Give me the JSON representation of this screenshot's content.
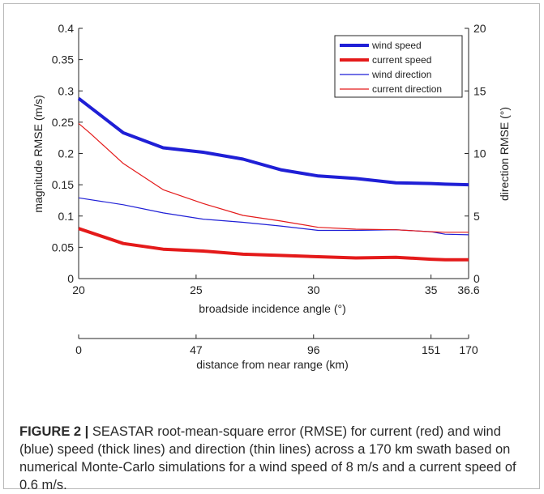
{
  "chart_data": {
    "type": "line",
    "xlabel": "broadside incidence angle (°)",
    "xlim": [
      20,
      36.6
    ],
    "xticks": [
      "20",
      "25",
      "30",
      "35",
      "36.6"
    ],
    "ylabel": "magnitude RMSE (m/s)",
    "ylim": [
      0,
      0.4
    ],
    "yticks": [
      "0",
      "0.05",
      "0.1",
      "0.15",
      "0.2",
      "0.25",
      "0.3",
      "0.35",
      "0.4"
    ],
    "y2label": "direction RMSE (°)",
    "y2lim": [
      0,
      20
    ],
    "y2ticks": [
      "0",
      "5",
      "10",
      "15",
      "20"
    ],
    "grid": false,
    "legend_position": "top-right",
    "secondary_x": {
      "label": "distance from near range (km)",
      "ticks": [
        {
          "angle": 20,
          "label": "0"
        },
        {
          "angle": 25,
          "label": "47"
        },
        {
          "angle": 30,
          "label": "96"
        },
        {
          "angle": 35,
          "label": "151"
        },
        {
          "angle": 36.6,
          "label": "170"
        }
      ]
    },
    "series": [
      {
        "name": "wind speed",
        "axis": "left",
        "color": "#1f1fd6",
        "width": "thick",
        "x": [
          20,
          21.9,
          23.6,
          25.3,
          27.0,
          28.6,
          30.2,
          31.8,
          33.5,
          35.0,
          35.6,
          36.6
        ],
        "y": [
          0.288,
          0.233,
          0.209,
          0.202,
          0.191,
          0.174,
          0.164,
          0.16,
          0.153,
          0.152,
          0.151,
          0.15
        ]
      },
      {
        "name": "current speed",
        "axis": "left",
        "color": "#e41a1a",
        "width": "thick",
        "x": [
          20,
          21.9,
          23.6,
          25.3,
          27.0,
          28.6,
          30.2,
          31.8,
          33.5,
          35.0,
          35.6,
          36.6
        ],
        "y": [
          0.08,
          0.056,
          0.047,
          0.044,
          0.039,
          0.037,
          0.035,
          0.033,
          0.034,
          0.031,
          0.03,
          0.03
        ]
      },
      {
        "name": "wind direction",
        "axis": "right",
        "color": "#1f1fd6",
        "width": "thin",
        "x": [
          20,
          21.9,
          23.6,
          25.3,
          27.0,
          28.6,
          30.2,
          31.8,
          33.5,
          35.0,
          35.6,
          36.6
        ],
        "y": [
          6.45,
          5.9,
          5.25,
          4.75,
          4.5,
          4.2,
          3.85,
          3.85,
          3.9,
          3.75,
          3.55,
          3.5
        ]
      },
      {
        "name": "current direction",
        "axis": "right",
        "color": "#e41a1a",
        "width": "thin",
        "x": [
          20,
          20.5,
          21.9,
          23.6,
          25.3,
          27.0,
          28.6,
          30.2,
          31.8,
          33.5,
          35.0,
          35.6,
          36.6
        ],
        "y": [
          12.4,
          11.6,
          9.2,
          7.1,
          6.0,
          5.05,
          4.6,
          4.1,
          3.95,
          3.9,
          3.75,
          3.7,
          3.7
        ]
      }
    ]
  },
  "caption": {
    "label": "FIGURE 2 |",
    "text": "SEASTAR root-mean-square error (RMSE) for current (red) and wind (blue) speed (thick lines) and direction (thin lines) across a 170 km swath based on numerical Monte-Carlo simulations for a wind speed of 8 m/s and a current speed of 0.6 m/s."
  }
}
